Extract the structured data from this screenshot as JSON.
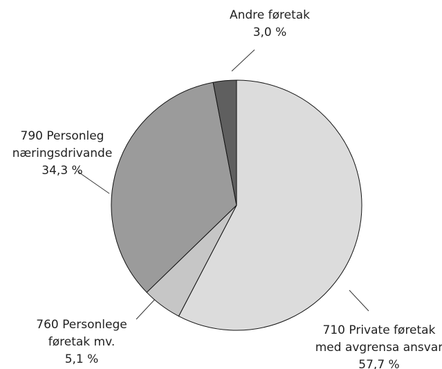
{
  "chart_data": {
    "type": "pie",
    "categories": [
      [
        "710 Private føretak",
        "med avgrensa ansvar"
      ],
      [
        "760 Personlege",
        "føretak mv."
      ],
      [
        "790 Personleg",
        "næringsdrivande"
      ],
      [
        "Andre føretak"
      ]
    ],
    "values": [
      57.7,
      5.1,
      34.3,
      3.0
    ],
    "value_labels": [
      "57,7 %",
      "5,1 %",
      "34,3 %",
      "3,0 %"
    ],
    "colors": [
      "#dcdcdc",
      "#c6c6c6",
      "#9b9b9b",
      "#5f5f5f"
    ]
  }
}
